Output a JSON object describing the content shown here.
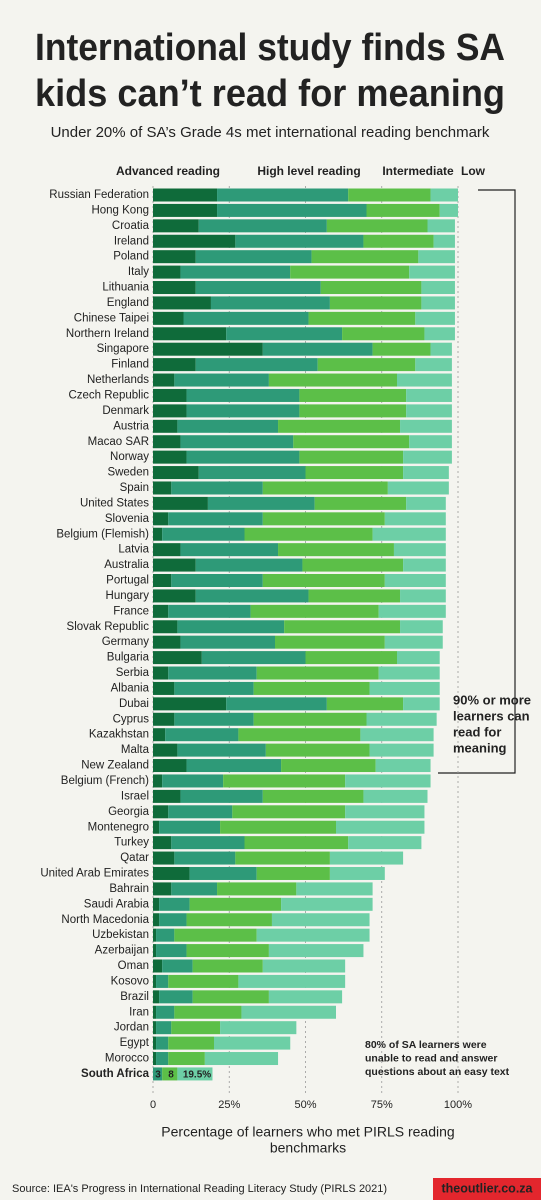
{
  "chart_data": {
    "type": "stacked_barh",
    "title": [
      "International study finds SA",
      "kids can’t read for meaning"
    ],
    "subtitle": "Under 20% of SA’s Grade 4s met international reading benchmark",
    "x_label": [
      "Percentage of learners who met PIRLS reading",
      "benchmarks"
    ],
    "source": "Source: IEA's Progress in International Reading Literacy Study (PIRLS 2021)",
    "brand": "theoutlier.co.za",
    "annotations": {
      "bracket_note": [
        "90% or more",
        "learners can",
        "read for",
        "meaning"
      ],
      "sa_note": [
        "80% of SA learners were",
        "unable to read and answer",
        "questions about an easy text"
      ],
      "sa_labels": [
        "3",
        "8",
        "19.5%"
      ]
    },
    "highlight_category": "South Africa",
    "highlight_color": "#e3262d",
    "categories": [
      "Russian Federation",
      "Hong Kong",
      "Croatia",
      "Ireland",
      "Poland",
      "Italy",
      "Lithuania",
      "England",
      "Chinese Taipei",
      "Northern Ireland",
      "Singapore",
      "Finland",
      "Netherlands",
      "Czech Republic",
      "Denmark",
      "Austria",
      "Macao SAR",
      "Norway",
      "Sweden",
      "Spain",
      "United States",
      "Slovenia",
      "Belgium (Flemish)",
      "Latvia",
      "Australia",
      "Portugal",
      "Hungary",
      "France",
      "Slovak Republic",
      "Germany",
      "Bulgaria",
      "Serbia",
      "Albania",
      "Dubai",
      "Cyprus",
      "Kazakhstan",
      "Malta",
      "New Zealand",
      "Belgium (French)",
      "Israel",
      "Georgia",
      "Montenegro",
      "Turkey",
      "Qatar",
      "United Arab Emirates",
      "Bahrain",
      "Saudi Arabia",
      "North Macedonia",
      "Uzbekistan",
      "Azerbaijan",
      "Oman",
      "Kosovo",
      "Brazil",
      "Iran",
      "Jordan",
      "Egypt",
      "Morocco",
      "South Africa"
    ],
    "series": [
      {
        "name": "Advanced reading",
        "color": "#0f6b3a",
        "values": [
          21,
          21,
          15,
          27,
          14,
          9,
          14,
          19,
          10,
          24,
          36,
          14,
          7,
          11,
          11,
          8,
          9,
          11,
          15,
          6,
          18,
          5,
          3,
          9,
          14,
          6,
          14,
          5,
          8,
          9,
          16,
          5,
          7,
          24,
          7,
          4,
          8,
          11,
          3,
          9,
          5,
          2,
          6,
          7,
          12,
          6,
          2,
          2,
          1,
          1,
          3,
          1,
          2,
          1,
          1,
          1,
          1,
          0
        ]
      },
      {
        "name": "High level reading",
        "color": "#2e9a78",
        "values": [
          43,
          49,
          42,
          42,
          38,
          36,
          41,
          39,
          41,
          38,
          36,
          40,
          31,
          37,
          37,
          33,
          37,
          37,
          35,
          30,
          35,
          31,
          27,
          32,
          35,
          30,
          37,
          27,
          35,
          31,
          34,
          29,
          26,
          33,
          26,
          24,
          29,
          31,
          20,
          27,
          21,
          20,
          24,
          20,
          22,
          15,
          10,
          9,
          6,
          10,
          10,
          4,
          11,
          6,
          5,
          4,
          4,
          3
        ]
      },
      {
        "name": "Intermediate",
        "color": "#5cbf48",
        "values": [
          27,
          24,
          33,
          23,
          35,
          39,
          33,
          30,
          35,
          27,
          19,
          32,
          42,
          35,
          35,
          40,
          38,
          34,
          32,
          41,
          30,
          40,
          42,
          38,
          33,
          40,
          30,
          42,
          38,
          36,
          30,
          40,
          38,
          25,
          37,
          40,
          34,
          31,
          40,
          33,
          37,
          38,
          34,
          31,
          24,
          26,
          30,
          28,
          27,
          27,
          23,
          23,
          25,
          22,
          16,
          15,
          12,
          5
        ]
      },
      {
        "name": "Low",
        "color": "#6dcfa6",
        "values": [
          9,
          6,
          9,
          7,
          12,
          15,
          11,
          11,
          13,
          10,
          7,
          12,
          18,
          15,
          15,
          17,
          14,
          16,
          15,
          20,
          13,
          20,
          24,
          17,
          14,
          20,
          15,
          22,
          14,
          19,
          14,
          20,
          23,
          12,
          23,
          24,
          21,
          18,
          28,
          21,
          26,
          29,
          24,
          24,
          18,
          25,
          30,
          32,
          37,
          31,
          27,
          35,
          24,
          31,
          25,
          25,
          24,
          11.5
        ]
      }
    ],
    "xlim": [
      0,
      100
    ],
    "xticks": [
      0,
      {
        "value": 25,
        "label": "25%"
      },
      {
        "value": 50,
        "label": "50%"
      },
      {
        "value": 75,
        "label": "75%"
      },
      {
        "value": 100,
        "label": "100%"
      }
    ],
    "grid": true
  }
}
